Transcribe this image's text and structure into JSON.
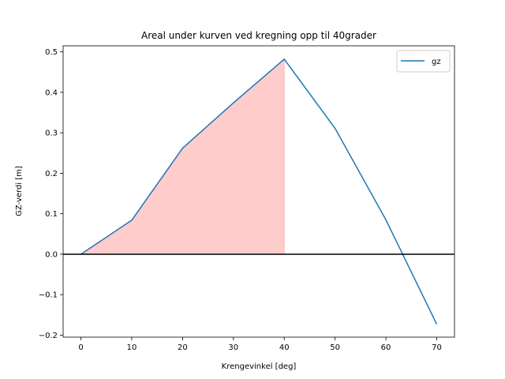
{
  "chart_data": {
    "type": "line",
    "title": "Areal under kurven ved kregning opp til 40grader",
    "xlabel": "Krengevinkel [deg]",
    "ylabel": "GZ-verdi [m]",
    "xlim": [
      -3.5,
      73.5
    ],
    "ylim": [
      -0.205,
      0.515
    ],
    "x_ticks": [
      0,
      10,
      20,
      30,
      40,
      50,
      60,
      70
    ],
    "y_ticks": [
      -0.2,
      -0.1,
      0.0,
      0.1,
      0.2,
      0.3,
      0.4,
      0.5
    ],
    "x_tick_labels": [
      "0",
      "10",
      "20",
      "30",
      "40",
      "50",
      "60",
      "70"
    ],
    "y_tick_labels": [
      "−0.2",
      "−0.1",
      "0.0",
      "0.1",
      "0.2",
      "0.3",
      "0.4",
      "0.5"
    ],
    "series": [
      {
        "name": "gz",
        "color": "#1f77b4",
        "x": [
          0,
          10,
          20,
          30,
          40,
          50,
          60,
          70
        ],
        "values": [
          0.0,
          0.084,
          0.262,
          0.374,
          0.482,
          0.311,
          0.085,
          -0.173
        ]
      }
    ],
    "fill_between": {
      "from_x": 0,
      "to_x": 40,
      "color": "#ff0000",
      "alpha": 0.2
    },
    "hline": {
      "y": 0.0,
      "color": "#000000"
    },
    "grid": false,
    "legend_position": "top-right"
  }
}
